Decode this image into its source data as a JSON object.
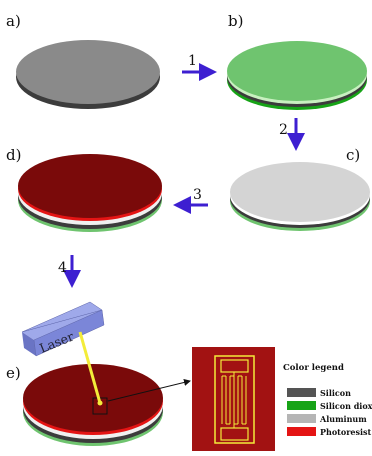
{
  "panels": {
    "a": "a)",
    "b": "b)",
    "c": "c)",
    "d": "d)",
    "e": "e)"
  },
  "steps": {
    "s1": "1",
    "s2": "2",
    "s3": "3",
    "s4": "4"
  },
  "laser": "Laser",
  "legend": {
    "title": "Color legend",
    "items": [
      {
        "label": "Silicon",
        "color": "#545454"
      },
      {
        "label": "Silicon dioxide",
        "color": "#17a317"
      },
      {
        "label": "Aluminum",
        "color": "#b5b5b5"
      },
      {
        "label": "Photoresist",
        "color": "#e41414"
      }
    ]
  },
  "colors": {
    "silicon": "#8a8a8a",
    "silicon_dark": "#3c3c3c",
    "oxide": "#6fc46f",
    "aluminum": "#d4d4d4",
    "photoresist": "#7a0a0a",
    "arrow": "#3d1fd1",
    "laser_beam": "#f3ec3a"
  }
}
